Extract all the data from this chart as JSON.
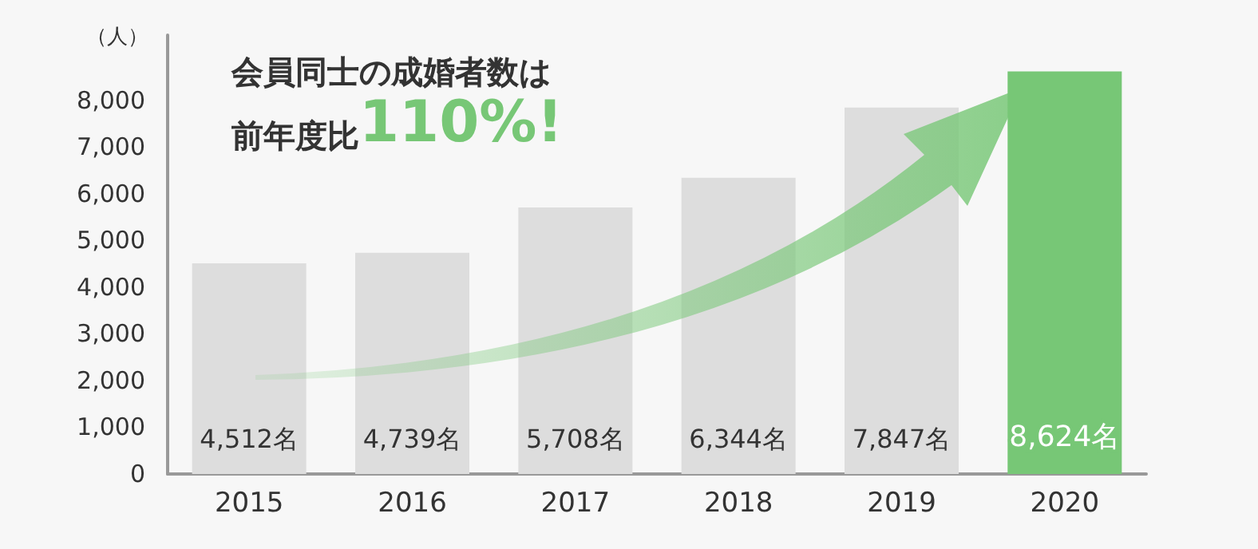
{
  "chart_data": {
    "type": "bar",
    "title": "会員同士の成婚者数は",
    "subtitle": "前年度比110%!",
    "ylabel": "（人）",
    "categories": [
      "2015",
      "2016",
      "2017",
      "2018",
      "2019",
      "2020"
    ],
    "values": [
      4512,
      4739,
      5708,
      6344,
      7847,
      8624
    ],
    "colors": [
      "#dddddd",
      "#dddddd",
      "#dddddd",
      "#dddddd",
      "#dddddd",
      "#77c776"
    ],
    "value_labels": [
      "4,512名",
      "4,739名",
      "5,708名",
      "6,344名",
      "7,847名",
      "8,624名"
    ],
    "ylim": [
      0,
      9400
    ],
    "yticks": [
      0,
      {
        "value": 1000,
        "label": "1,000"
      },
      {
        "value": 2000,
        "label": "2,000"
      },
      {
        "value": 3000,
        "label": "3,000"
      },
      {
        "value": 4000,
        "label": "4,000"
      },
      {
        "value": 5000,
        "label": "5,000"
      },
      {
        "value": 6000,
        "label": "6,000"
      },
      {
        "value": 7000,
        "label": "7,000"
      },
      {
        "value": 8000,
        "label": "8,000"
      }
    ],
    "grid": false
  }
}
